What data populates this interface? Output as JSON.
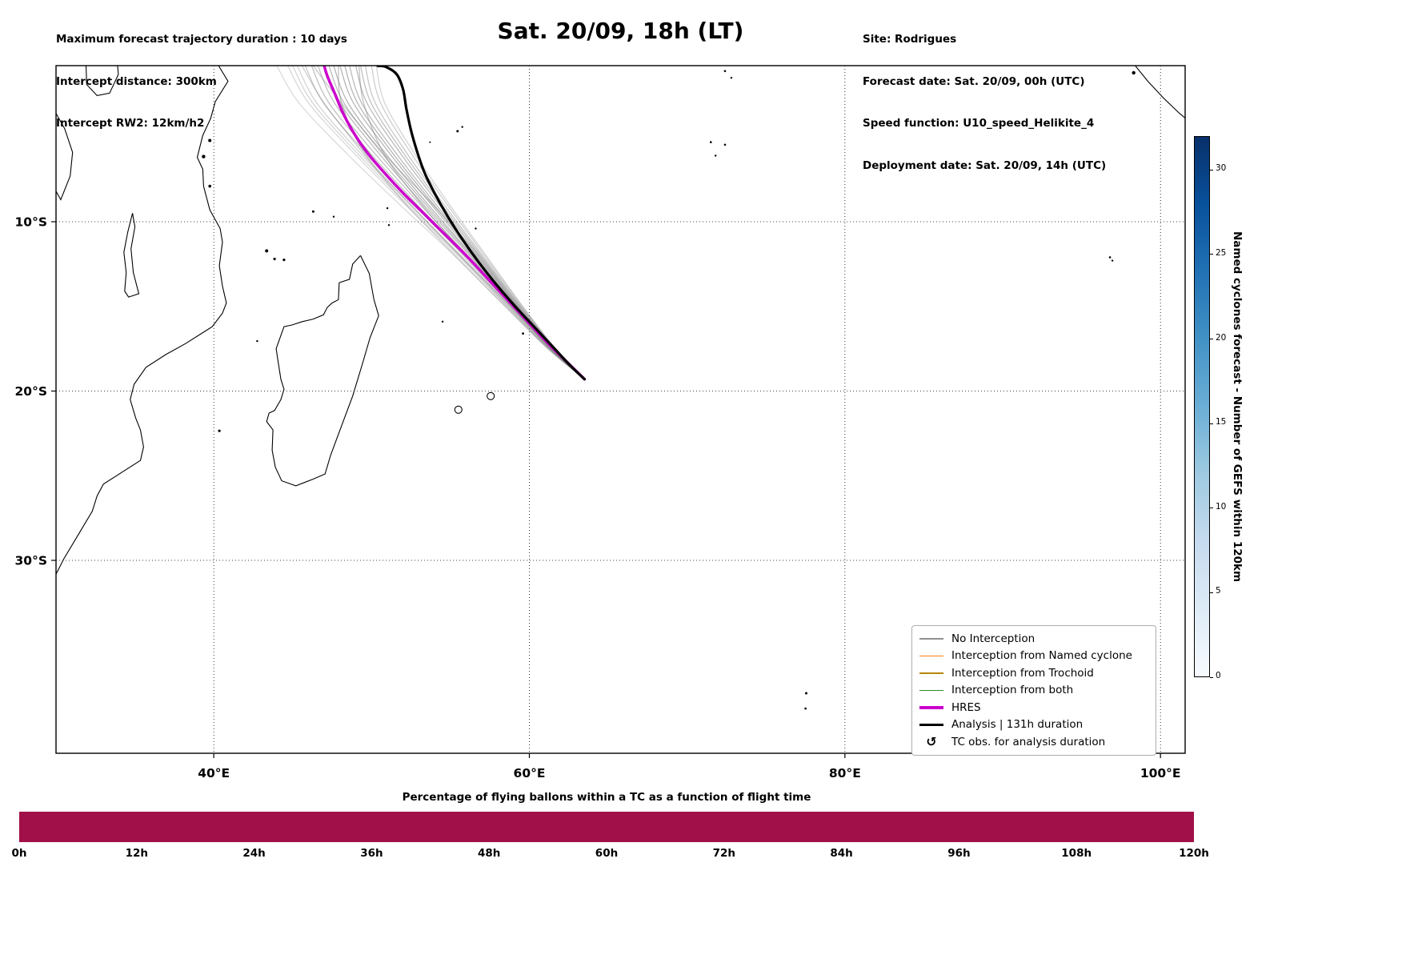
{
  "header": {
    "left_lines": [
      "Maximum forecast trajectory duration : 10 days",
      "Intercept distance: 300km",
      "Intercept RW2: 12km/h2"
    ],
    "title": "Sat. 20/09, 18h (LT)",
    "right_lines": [
      "Site: Rodrigues",
      "Forecast date: Sat. 20/09, 00h (UTC)",
      "Speed function: U10_speed_Helikite_4",
      "Deployment date: Sat. 20/09, 14h (UTC)"
    ]
  },
  "map": {
    "x_ticks": [
      {
        "lon": 40,
        "label": "40°E"
      },
      {
        "lon": 60,
        "label": "60°E"
      },
      {
        "lon": 80,
        "label": "80°E"
      },
      {
        "lon": 100,
        "label": "100°E"
      }
    ],
    "y_ticks": [
      {
        "lat": 10,
        "label": "10°S"
      },
      {
        "lat": 20,
        "label": "20°S"
      },
      {
        "lat": 30,
        "label": "30°S"
      }
    ]
  },
  "legend": {
    "items": [
      {
        "label": "No Interception",
        "color": "#909090",
        "lw": 1.5
      },
      {
        "label": "Interception from Named cyclone",
        "color": "#ff7f0e",
        "lw": 1.5
      },
      {
        "label": "Interception from Trochoid",
        "color": "#b8860b",
        "lw": 1.5
      },
      {
        "label": "Interception from both",
        "color": "#2e8b2e",
        "lw": 1.5
      },
      {
        "label": "HRES",
        "color": "#cc00cc",
        "lw": 3.5
      },
      {
        "label": "Analysis | 131h duration",
        "color": "#000000",
        "lw": 3.5
      },
      {
        "label": "TC obs. for analysis duration",
        "symbol": "↺"
      }
    ]
  },
  "colorbar": {
    "label": "Named cyclones forecast - Number of GEFS within 120km",
    "ticks": [
      0,
      5,
      10,
      15,
      20,
      25,
      30
    ],
    "vmin": 0,
    "vmax": 32,
    "stops": [
      "#f7fbff",
      "#deebf7",
      "#c6dbef",
      "#9ecae1",
      "#6baed6",
      "#4292c6",
      "#2171b5",
      "#08519c",
      "#08306b"
    ]
  },
  "bottom": {
    "title": "Percentage of flying ballons within a TC as a function of flight time",
    "ticks": [
      "0h",
      "12h",
      "24h",
      "36h",
      "48h",
      "60h",
      "72h",
      "84h",
      "96h",
      "108h",
      "120h"
    ],
    "bar_color": "#a11048"
  },
  "chart_data": {
    "type": "line",
    "description": "Balloon forecast trajectories launched from Rodrigues over SW Indian Ocean",
    "start_site": "Rodrigues",
    "start_point": {
      "lon": 63.5,
      "lat_s": 19.3
    },
    "lon_range": [
      30.0,
      101.6
    ],
    "lat_range_s": [
      0.78,
      41.4
    ],
    "lat_levels_s": [
      19.3,
      17.5,
      15,
      12,
      9,
      6,
      3,
      0.8
    ],
    "ensemble_color": "#808080",
    "ensemble": [
      {
        "opacity": 0.3,
        "lons": [
          63.5,
          61.16,
          58.46,
          55.24,
          51.8,
          48.46,
          45.42,
          44.0
        ]
      },
      {
        "opacity": 0.32,
        "lons": [
          63.5,
          61.22,
          58.59,
          55.46,
          52.15,
          48.94,
          46.02,
          44.7
        ]
      },
      {
        "opacity": 0.34,
        "lons": [
          63.5,
          61.24,
          58.64,
          55.56,
          52.3,
          49.14,
          46.28,
          45.0
        ]
      },
      {
        "opacity": 0.35,
        "lons": [
          63.5,
          61.26,
          58.69,
          55.66,
          52.45,
          49.34,
          46.54,
          45.3
        ]
      },
      {
        "opacity": 0.45,
        "lons": [
          63.5,
          61.3,
          58.78,
          55.82,
          52.7,
          49.68,
          46.97,
          45.8
        ]
      },
      {
        "opacity": 0.5,
        "lons": [
          63.5,
          61.34,
          58.86,
          55.94,
          52.9,
          49.96,
          47.31,
          46.2
        ]
      },
      {
        "opacity": 0.5,
        "lons": [
          63.5,
          61.37,
          58.93,
          56.07,
          53.1,
          50.23,
          47.66,
          46.6
        ]
      },
      {
        "opacity": 0.55,
        "lons": [
          63.5,
          61.4,
          59.0,
          56.2,
          53.3,
          50.5,
          48.0,
          47.0
        ]
      },
      {
        "opacity": 0.55,
        "lons": [
          63.5,
          61.42,
          59.05,
          56.3,
          53.45,
          50.7,
          48.26,
          47.3
        ]
      },
      {
        "opacity": 0.6,
        "lons": [
          63.5,
          61.45,
          59.11,
          56.39,
          53.6,
          50.91,
          48.52,
          47.6
        ]
      },
      {
        "opacity": 0.6,
        "lons": [
          63.5,
          61.48,
          59.18,
          56.52,
          53.8,
          51.18,
          48.86,
          48.0
        ]
      },
      {
        "opacity": 0.6,
        "lons": [
          63.5,
          61.5,
          59.23,
          56.62,
          53.95,
          51.38,
          49.12,
          48.3
        ]
      },
      {
        "opacity": 0.55,
        "lons": [
          63.5,
          61.53,
          59.29,
          56.71,
          54.1,
          51.59,
          49.38,
          48.6
        ]
      },
      {
        "opacity": 0.55,
        "lons": [
          63.5,
          61.56,
          59.36,
          56.84,
          54.3,
          51.86,
          49.72,
          49.0
        ]
      },
      {
        "opacity": 0.5,
        "lons": [
          63.5,
          61.58,
          59.41,
          56.94,
          54.45,
          52.06,
          49.98,
          49.3
        ]
      },
      {
        "opacity": 0.45,
        "lons": [
          63.5,
          61.61,
          59.47,
          57.03,
          54.6,
          52.27,
          50.24,
          49.6
        ]
      },
      {
        "opacity": 0.4,
        "lons": [
          63.5,
          61.64,
          59.54,
          57.16,
          54.8,
          52.54,
          50.58,
          50.0
        ]
      },
      {
        "opacity": 0.35,
        "lons": [
          63.5,
          61.66,
          59.59,
          57.26,
          54.95,
          52.74,
          50.84,
          50.3
        ]
      },
      {
        "opacity": 0.5,
        "lons": [
          63.5,
          61.35,
          58.8,
          55.6,
          52.5,
          49.6,
          48.1,
          47.9
        ]
      },
      {
        "opacity": 0.45,
        "lons": [
          63.5,
          61.55,
          59.25,
          56.8,
          53.9,
          50.8,
          48.1,
          46.3
        ]
      },
      {
        "opacity": 0.5,
        "lons": [
          63.5,
          61.45,
          59.0,
          56.0,
          53.2,
          50.8,
          49.5,
          49.2
        ]
      },
      {
        "opacity": 0.4,
        "lons": [
          63.5,
          61.2,
          58.5,
          55.3,
          52.2,
          49.5,
          47.0,
          45.6
        ]
      }
    ],
    "hres": {
      "name": "HRES",
      "color": "#cc00cc",
      "points": [
        [
          63.5,
          19.3
        ],
        [
          62.4,
          18.3
        ],
        [
          61.2,
          17.2
        ],
        [
          59.9,
          15.9
        ],
        [
          58.6,
          14.6
        ],
        [
          57.3,
          13.3
        ],
        [
          56.0,
          12.0
        ],
        [
          54.7,
          10.8
        ],
        [
          53.4,
          9.6
        ],
        [
          52.1,
          8.4
        ],
        [
          50.9,
          7.2
        ],
        [
          49.8,
          6.0
        ],
        [
          48.9,
          4.8
        ],
        [
          48.2,
          3.6
        ],
        [
          47.7,
          2.5
        ],
        [
          47.2,
          1.4
        ],
        [
          47.0,
          0.8
        ]
      ]
    },
    "analysis": {
      "name": "Analysis | 131h duration",
      "color": "#000000",
      "points": [
        [
          63.5,
          19.3
        ],
        [
          62.6,
          18.5
        ],
        [
          61.5,
          17.4
        ],
        [
          60.3,
          16.2
        ],
        [
          59.1,
          15.0
        ],
        [
          57.9,
          13.7
        ],
        [
          56.8,
          12.4
        ],
        [
          55.8,
          11.1
        ],
        [
          54.9,
          9.8
        ],
        [
          54.1,
          8.5
        ],
        [
          53.4,
          7.2
        ],
        [
          52.9,
          5.9
        ],
        [
          52.5,
          4.6
        ],
        [
          52.2,
          3.3
        ],
        [
          52.0,
          2.2
        ],
        [
          51.6,
          1.3
        ],
        [
          50.9,
          0.85
        ],
        [
          50.4,
          0.8
        ]
      ]
    }
  }
}
